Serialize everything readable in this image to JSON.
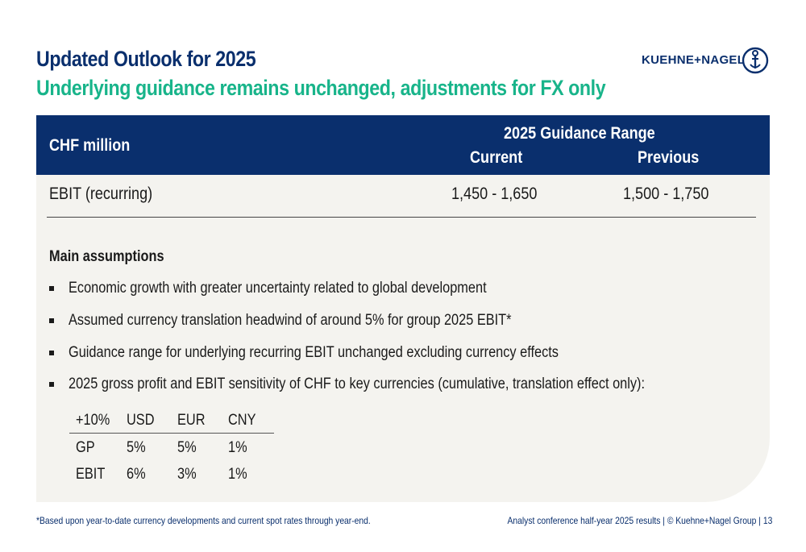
{
  "slide": {
    "title": "Updated Outlook for 2025",
    "subtitle": "Underlying guidance remains unchanged, adjustments for FX only"
  },
  "logo": {
    "text": "KUEHNE+NAGEL",
    "icon": "anchor-icon"
  },
  "table": {
    "unit_header": "CHF million",
    "range_header": "2025 Guidance Range",
    "col_current": "Current",
    "col_previous": "Previous",
    "rows": [
      {
        "label": "EBIT (recurring)",
        "current": "1,450 - 1,650",
        "previous": "1,500 - 1,750"
      }
    ]
  },
  "assumptions": {
    "title": "Main assumptions",
    "bullets": [
      "Economic growth with greater uncertainty related to global development",
      "Assumed currency translation headwind of around 5% for group 2025 EBIT*",
      "Guidance range for underlying recurring EBIT unchanged excluding currency effects",
      "2025 gross profit and EBIT sensitivity of CHF to key currencies (cumulative, translation effect only):"
    ]
  },
  "sensitivity": {
    "header": [
      "+10%",
      "USD",
      "EUR",
      "CNY"
    ],
    "rows": [
      [
        "GP",
        "5%",
        "5%",
        "1%"
      ],
      [
        "EBIT",
        "6%",
        "3%",
        "1%"
      ]
    ]
  },
  "footer": {
    "note": "*Based upon year-to-date currency developments and current spot rates through year-end.",
    "source": "Analyst conference half-year 2025 results | © Kuehne+Nagel Group | 13"
  },
  "colors": {
    "navy": "#0a2f6d",
    "green": "#18b48a",
    "panel": "#f4f3ef"
  }
}
